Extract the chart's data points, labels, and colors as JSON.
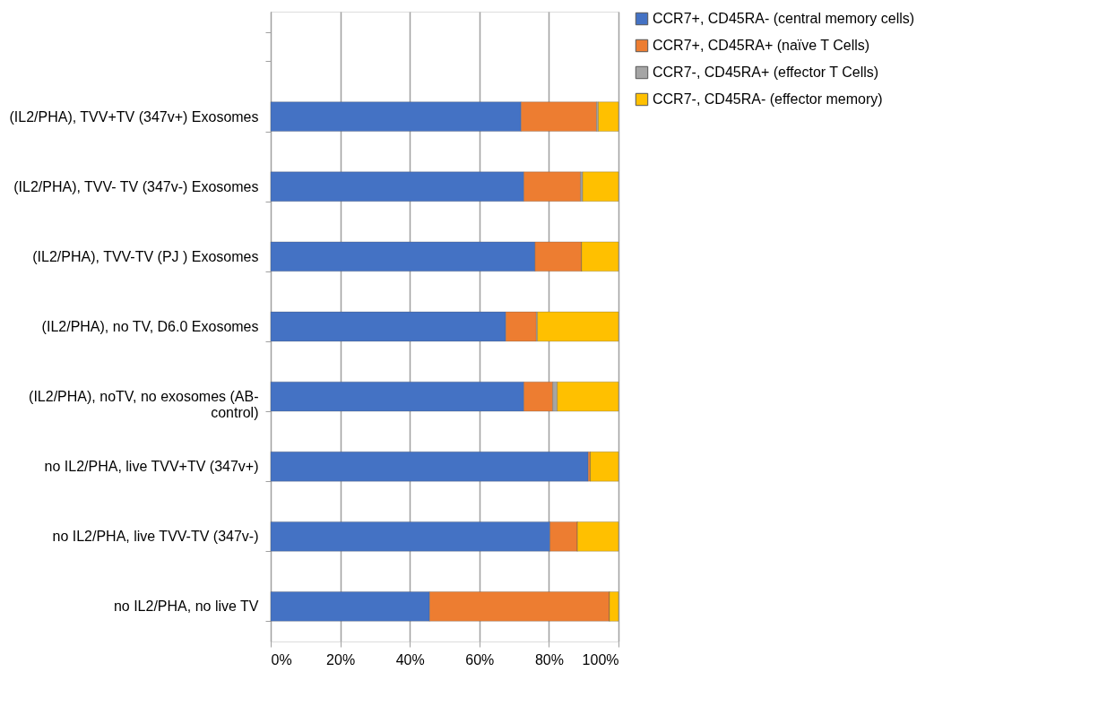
{
  "chart_data": {
    "type": "bar",
    "orientation": "horizontal",
    "stacked": true,
    "categories": [
      null,
      "(IL2/PHA), TVV+TV  (347v+) Exosomes",
      "(IL2/PHA), TVV- TV (347v-) Exosomes",
      "(IL2/PHA), TVV-TV  (PJ ) Exosomes",
      "(IL2/PHA),  no TV,  D6.0 Exosomes",
      "(IL2/PHA), noTV,  no exosomes (AB-control)",
      "no IL2/PHA, live TVV+TV  (347v+)",
      "no IL2/PHA, live TVV-TV  (347v-)",
      "no IL2/PHA, no live TV"
    ],
    "series": [
      {
        "name": "CCR7+, CD45RA- (central memory cells)",
        "color": "#4472c4",
        "values": [
          null,
          72.0,
          72.8,
          76.0,
          67.6,
          72.8,
          91.3,
          80.3,
          45.7
        ]
      },
      {
        "name": "CCR7+, CD45RA+ (naïve T Cells)",
        "color": "#ed7d31",
        "values": [
          null,
          21.7,
          16.3,
          13.4,
          8.8,
          8.3,
          0.6,
          7.9,
          51.7
        ]
      },
      {
        "name": "CCR7-, CD45RA+ (effector T Cells)",
        "color": "#a5a5a5",
        "values": [
          null,
          0.5,
          0.6,
          0,
          0.3,
          1.3,
          0,
          0,
          0
        ]
      },
      {
        "name": "CCR7-, CD45RA- (effector memory)",
        "color": "#ffc000",
        "values": [
          null,
          5.8,
          10.3,
          10.6,
          23.3,
          17.6,
          8.1,
          11.8,
          2.6
        ]
      }
    ],
    "xlim": [
      0,
      100
    ],
    "xticks": [
      {
        "value": 0,
        "label": "0%"
      },
      {
        "value": 20,
        "label": "20%"
      },
      {
        "value": 40,
        "label": "40%"
      },
      {
        "value": 60,
        "label": "60%"
      },
      {
        "value": 80,
        "label": "80%"
      },
      {
        "value": 100,
        "label": "100%"
      }
    ],
    "grid": "x",
    "legend": "right"
  }
}
